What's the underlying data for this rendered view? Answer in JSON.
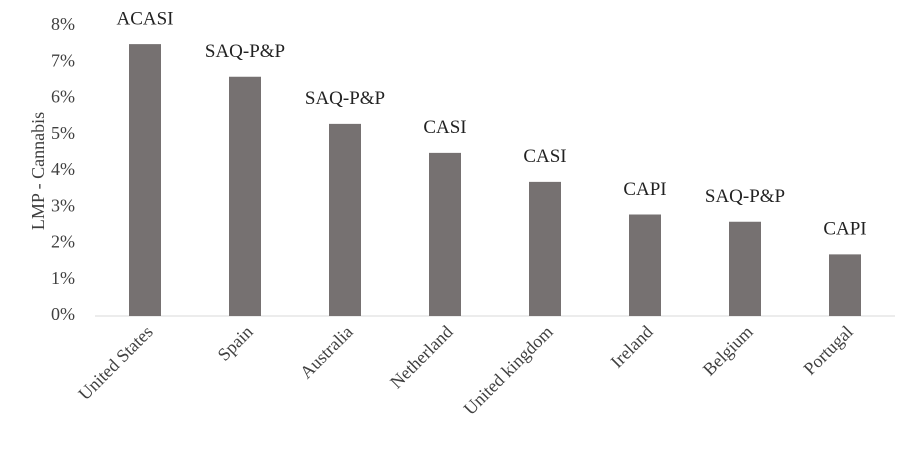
{
  "chart_data": {
    "type": "bar",
    "y_label": "LMP - Cannabis",
    "categories": [
      "United States",
      "Spain",
      "Australia",
      "Netherland",
      "United kingdom",
      "Ireland",
      "Belgium",
      "Portugal"
    ],
    "values": [
      7.5,
      6.6,
      5.3,
      4.5,
      3.7,
      2.8,
      2.6,
      1.7
    ],
    "annotations": [
      "ACASI",
      "SAQ-P&P",
      "SAQ-P&P",
      "CASI",
      "CASI",
      "CAPI",
      "SAQ-P&P",
      "CAPI"
    ],
    "color": "#767171",
    "ylim": [
      0,
      8
    ],
    "yticks": [
      {
        "value": 0,
        "label": "0%"
      },
      {
        "value": 1,
        "label": "1%"
      },
      {
        "value": 2,
        "label": "2%"
      },
      {
        "value": 3,
        "label": "3%"
      },
      {
        "value": 4,
        "label": "4%"
      },
      {
        "value": 5,
        "label": "5%"
      },
      {
        "value": 6,
        "label": "6%"
      },
      {
        "value": 7,
        "label": "7%"
      },
      {
        "value": 8,
        "label": "8%"
      }
    ],
    "grid": false
  }
}
